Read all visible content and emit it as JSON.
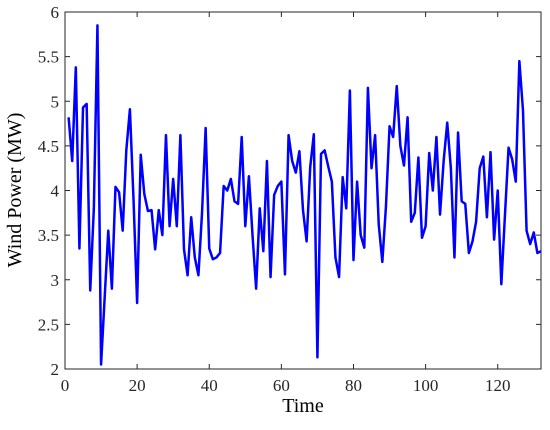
{
  "chart_data": {
    "type": "line",
    "x_label": "Time",
    "y_label": "Wind Power (MW)",
    "color": "#0000ff",
    "x": [
      1,
      2,
      3,
      4,
      5,
      6,
      7,
      8,
      9,
      10,
      11,
      12,
      13,
      14,
      15,
      16,
      17,
      18,
      19,
      20,
      21,
      22,
      23,
      24,
      25,
      26,
      27,
      28,
      29,
      30,
      31,
      32,
      33,
      34,
      35,
      36,
      37,
      38,
      39,
      40,
      41,
      42,
      43,
      44,
      45,
      46,
      47,
      48,
      49,
      50,
      51,
      52,
      53,
      54,
      55,
      56,
      57,
      58,
      59,
      60,
      61,
      62,
      63,
      64,
      65,
      66,
      67,
      68,
      69,
      70,
      71,
      72,
      73,
      74,
      75,
      76,
      77,
      78,
      79,
      80,
      81,
      82,
      83,
      84,
      85,
      86,
      87,
      88,
      89,
      90,
      91,
      92,
      93,
      94,
      95,
      96,
      97,
      98,
      99,
      100,
      101,
      102,
      103,
      104,
      105,
      106,
      107,
      108,
      109,
      110,
      111,
      112,
      113,
      114,
      115,
      116,
      117,
      118,
      119,
      120,
      121,
      122,
      123,
      124,
      125,
      126,
      127,
      128,
      129,
      130,
      131,
      132
    ],
    "values": [
      4.82,
      4.33,
      5.38,
      3.35,
      4.93,
      4.97,
      2.88,
      3.8,
      5.85,
      2.05,
      2.8,
      3.55,
      2.9,
      4.04,
      3.98,
      3.55,
      4.45,
      4.91,
      3.9,
      2.74,
      4.4,
      3.96,
      3.77,
      3.78,
      3.34,
      3.78,
      3.5,
      4.62,
      3.6,
      4.13,
      3.6,
      4.62,
      3.34,
      3.05,
      3.7,
      3.25,
      3.05,
      3.75,
      4.7,
      3.35,
      3.23,
      3.25,
      3.3,
      4.05,
      4.0,
      4.13,
      3.88,
      3.85,
      4.6,
      3.6,
      4.16,
      3.5,
      2.9,
      3.8,
      3.32,
      4.33,
      3.03,
      3.95,
      4.05,
      4.1,
      3.06,
      4.62,
      4.33,
      4.2,
      4.44,
      3.78,
      3.43,
      4.26,
      4.63,
      2.13,
      4.41,
      4.45,
      4.27,
      4.1,
      3.25,
      3.03,
      4.15,
      3.8,
      5.12,
      3.22,
      4.1,
      3.5,
      3.36,
      5.15,
      4.25,
      4.62,
      3.62,
      3.2,
      3.82,
      4.72,
      4.6,
      5.17,
      4.5,
      4.28,
      4.82,
      3.65,
      3.75,
      4.37,
      3.47,
      3.6,
      4.42,
      4.0,
      4.6,
      3.73,
      4.33,
      4.76,
      4.25,
      3.25,
      4.65,
      3.88,
      3.85,
      3.3,
      3.43,
      3.65,
      4.25,
      4.38,
      3.7,
      4.43,
      3.45,
      4.0,
      2.95,
      3.72,
      4.48,
      4.35,
      4.1,
      5.45,
      4.9,
      3.55,
      3.4,
      3.53,
      3.3,
      3.32
    ],
    "xlim": [
      0,
      132
    ],
    "xticks": [
      0,
      20,
      40,
      60,
      80,
      100,
      120
    ],
    "ylim": [
      2,
      6
    ],
    "yticks": [
      2,
      2.5,
      3,
      3.5,
      4,
      4.5,
      5,
      5.5,
      6
    ]
  }
}
